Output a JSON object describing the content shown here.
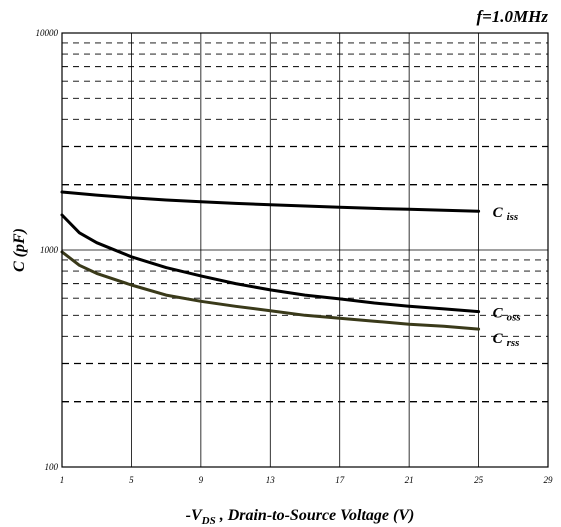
{
  "chart_data": {
    "type": "line",
    "annotation": "f=1.0MHz",
    "xlabel": {
      "prefix": "-V",
      "sub": "DS",
      "rest": " , Drain-to-Source Voltage (V)"
    },
    "ylabel": "C (pF)",
    "x_ticks": [
      "1",
      "5",
      "9",
      "13",
      "17",
      "21",
      "25",
      "29"
    ],
    "xlim": [
      1,
      29
    ],
    "y_scale": "log",
    "ylim": [
      100,
      10000
    ],
    "y_tick_labels": [
      "100",
      "1000",
      "10000"
    ],
    "grid": true,
    "series": [
      {
        "name": "Ciss",
        "label_main": "C",
        "label_sub": "iss",
        "color": "#000000",
        "x": [
          1,
          3,
          5,
          7,
          9,
          11,
          13,
          15,
          17,
          19,
          21,
          23,
          25
        ],
        "y": [
          1850,
          1790,
          1740,
          1700,
          1670,
          1640,
          1615,
          1595,
          1575,
          1555,
          1540,
          1525,
          1510
        ]
      },
      {
        "name": "Coss",
        "label_main": "C",
        "label_sub": "oss",
        "color": "#000000",
        "x": [
          1,
          2,
          3,
          5,
          7,
          9,
          11,
          13,
          15,
          17,
          19,
          21,
          23,
          25
        ],
        "y": [
          1450,
          1200,
          1080,
          930,
          830,
          760,
          700,
          655,
          620,
          595,
          570,
          550,
          535,
          520
        ]
      },
      {
        "name": "Crss",
        "label_main": "C",
        "label_sub": "rss",
        "color": "#3a3a1a",
        "x": [
          1,
          2,
          3,
          5,
          7,
          9,
          11,
          13,
          15,
          17,
          19,
          21,
          23,
          25
        ],
        "y": [
          980,
          850,
          780,
          690,
          620,
          580,
          550,
          525,
          500,
          485,
          470,
          455,
          445,
          432
        ]
      }
    ]
  }
}
